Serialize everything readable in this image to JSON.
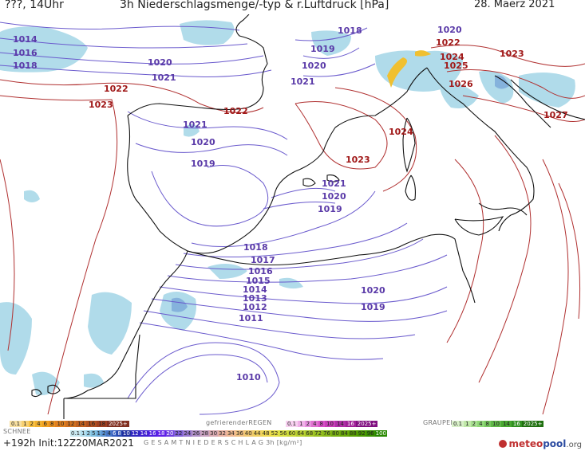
{
  "header": {
    "left": "???, 14Uhr",
    "title": "3h Niederschlagsmenge/-typ & r.Luftdruck [hPa]",
    "date": "28. Maerz 2021"
  },
  "isobar_labels": {
    "blue": [
      {
        "text": "1014"
      },
      {
        "text": "1016"
      },
      {
        "text": "1018"
      },
      {
        "text": "1020"
      },
      {
        "text": "1021"
      },
      {
        "text": "1018"
      },
      {
        "text": "1019"
      },
      {
        "text": "1020"
      },
      {
        "text": "1021"
      },
      {
        "text": "1020"
      },
      {
        "text": "1021"
      },
      {
        "text": "1020"
      },
      {
        "text": "1019"
      },
      {
        "text": "1021"
      },
      {
        "text": "1020"
      },
      {
        "text": "1019"
      },
      {
        "text": "1018"
      },
      {
        "text": "1017"
      },
      {
        "text": "1016"
      },
      {
        "text": "1015"
      },
      {
        "text": "1014"
      },
      {
        "text": "1013"
      },
      {
        "text": "1012"
      },
      {
        "text": "1011"
      },
      {
        "text": "1020"
      },
      {
        "text": "1019"
      },
      {
        "text": "1010"
      }
    ],
    "red": [
      {
        "text": "1022"
      },
      {
        "text": "1023"
      },
      {
        "text": "1022"
      },
      {
        "text": "1022"
      },
      {
        "text": "1024"
      },
      {
        "text": "1025"
      },
      {
        "text": "1026"
      },
      {
        "text": "1023"
      },
      {
        "text": "1024"
      },
      {
        "text": "1023"
      },
      {
        "text": "1027"
      }
    ]
  },
  "legend": {
    "schnee_label": "SCHNEE",
    "regen_label": "gefrierenderREGEN",
    "graupel_label": "GRAUPEL",
    "total_label": "G E S A M T N I E D E R S C H L A G   3h  [kg/m²]",
    "snow_scale": [
      "0.1",
      "1",
      "2",
      "4",
      "6",
      "8",
      "10",
      "12",
      "14",
      "16",
      "18",
      "2025+"
    ],
    "regen_scale": [
      "0.1",
      "1",
      "2",
      "4",
      "8",
      "10",
      "14",
      "16",
      "2025+"
    ],
    "graupel_scale": [
      "0.1",
      "1",
      "2",
      "4",
      "8",
      "10",
      "14",
      "16",
      "2025+"
    ],
    "total_scale": [
      "0.1",
      "1",
      "2",
      "5",
      "1",
      "2",
      "4",
      "6",
      "8",
      "10",
      "12",
      "14",
      "16",
      "18",
      "20",
      "22",
      "24",
      "26",
      "28",
      "30",
      "32",
      "34",
      "36",
      "40",
      "44",
      "48",
      "52",
      "56",
      "60",
      "64",
      "68",
      "72",
      "76",
      "80",
      "84",
      "88",
      "92",
      "96",
      "100"
    ],
    "colors": {
      "snow": "#f0a030",
      "regen": "#e070d0",
      "graupel": "#80d060",
      "total_low": "#a8d8e8",
      "total_high": "#f07020"
    }
  },
  "footer": {
    "forecast": "+192h",
    "init": "Init:12Z20MAR2021"
  },
  "logo": {
    "meteo": "meteo",
    "pool": "pool",
    "tld": ".org"
  }
}
